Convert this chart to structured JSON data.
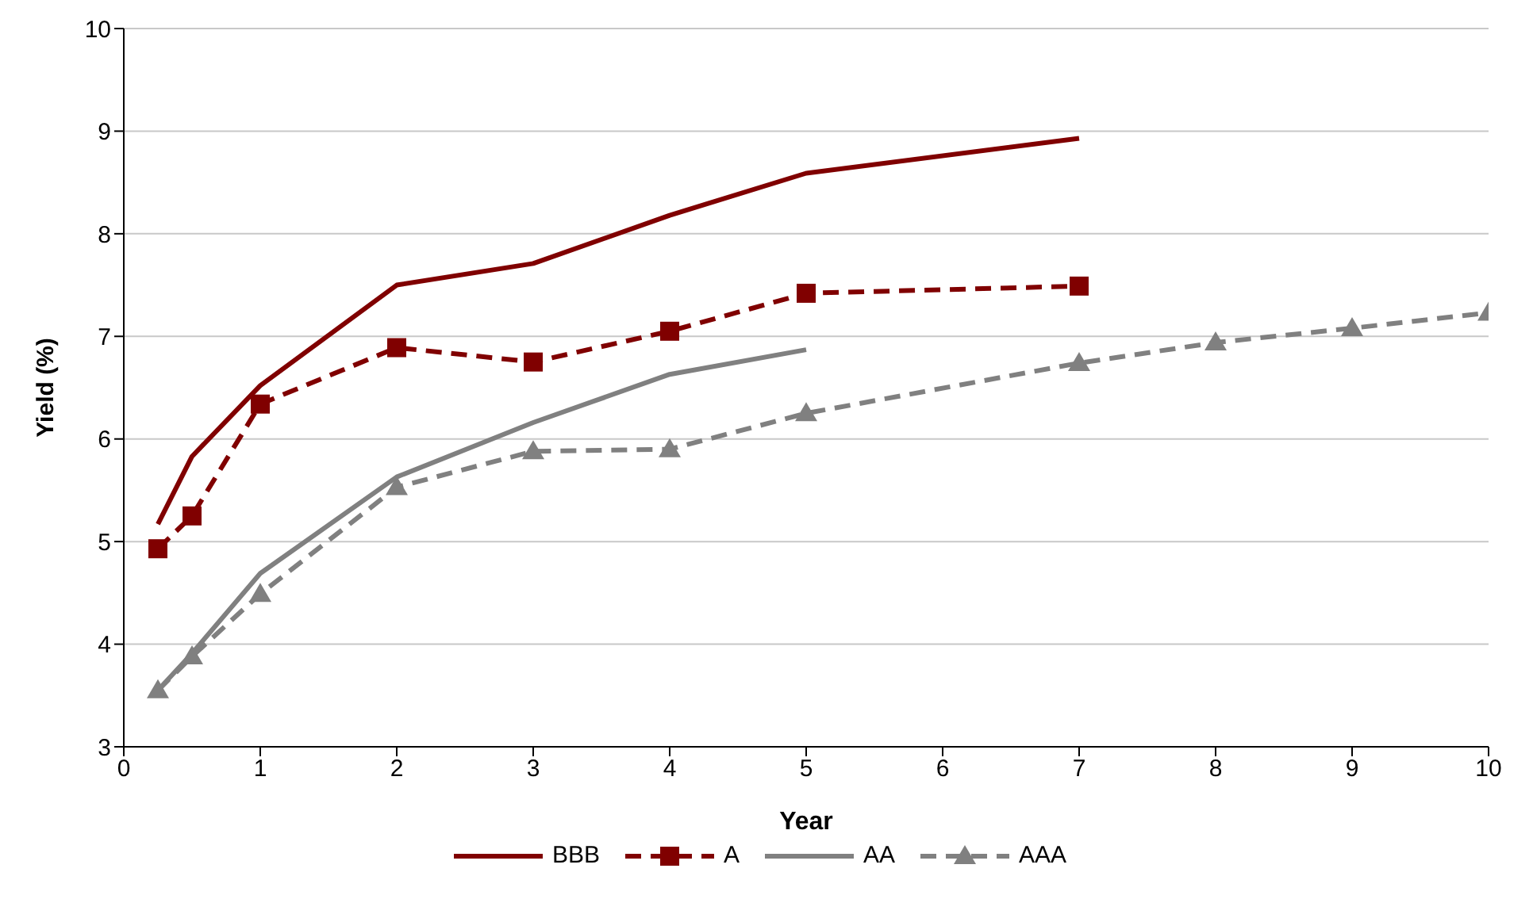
{
  "chart_data": {
    "type": "line",
    "xlabel": "Year",
    "ylabel": "Yield (%)",
    "xlim": [
      0,
      10
    ],
    "xticks": [
      0,
      1,
      2,
      3,
      4,
      5,
      6,
      7,
      8,
      9,
      10
    ],
    "ylim": [
      3,
      10
    ],
    "yticks": [
      3,
      4,
      5,
      6,
      7,
      8,
      9,
      10
    ],
    "grid": "y",
    "legend": "bottom",
    "series": [
      {
        "name": "BBB",
        "color": "#800000",
        "line_style": "solid",
        "marker": "none",
        "x": [
          0.25,
          0.5,
          1,
          2,
          3,
          4,
          5,
          7
        ],
        "values": [
          5.17,
          5.83,
          6.52,
          7.5,
          7.71,
          8.18,
          8.59,
          8.93
        ]
      },
      {
        "name": "A",
        "color": "#800000",
        "line_style": "dashed",
        "marker": "square",
        "x": [
          0.25,
          0.5,
          1,
          2,
          3,
          4,
          5,
          7
        ],
        "values": [
          4.93,
          5.25,
          6.34,
          6.89,
          6.75,
          7.05,
          7.42,
          7.49
        ]
      },
      {
        "name": "AA",
        "color": "#808080",
        "line_style": "solid",
        "marker": "none",
        "x": [
          0.25,
          0.5,
          1,
          2,
          3,
          4,
          5
        ],
        "values": [
          3.55,
          3.91,
          4.69,
          5.63,
          6.16,
          6.63,
          6.87
        ]
      },
      {
        "name": "AAA",
        "color": "#808080",
        "line_style": "dashed",
        "marker": "triangle",
        "x": [
          0.25,
          0.5,
          1,
          2,
          3,
          4,
          5,
          7,
          8,
          9,
          10
        ],
        "values": [
          3.55,
          3.88,
          4.49,
          5.53,
          5.88,
          5.9,
          6.25,
          6.74,
          6.94,
          7.08,
          7.23
        ]
      }
    ]
  }
}
